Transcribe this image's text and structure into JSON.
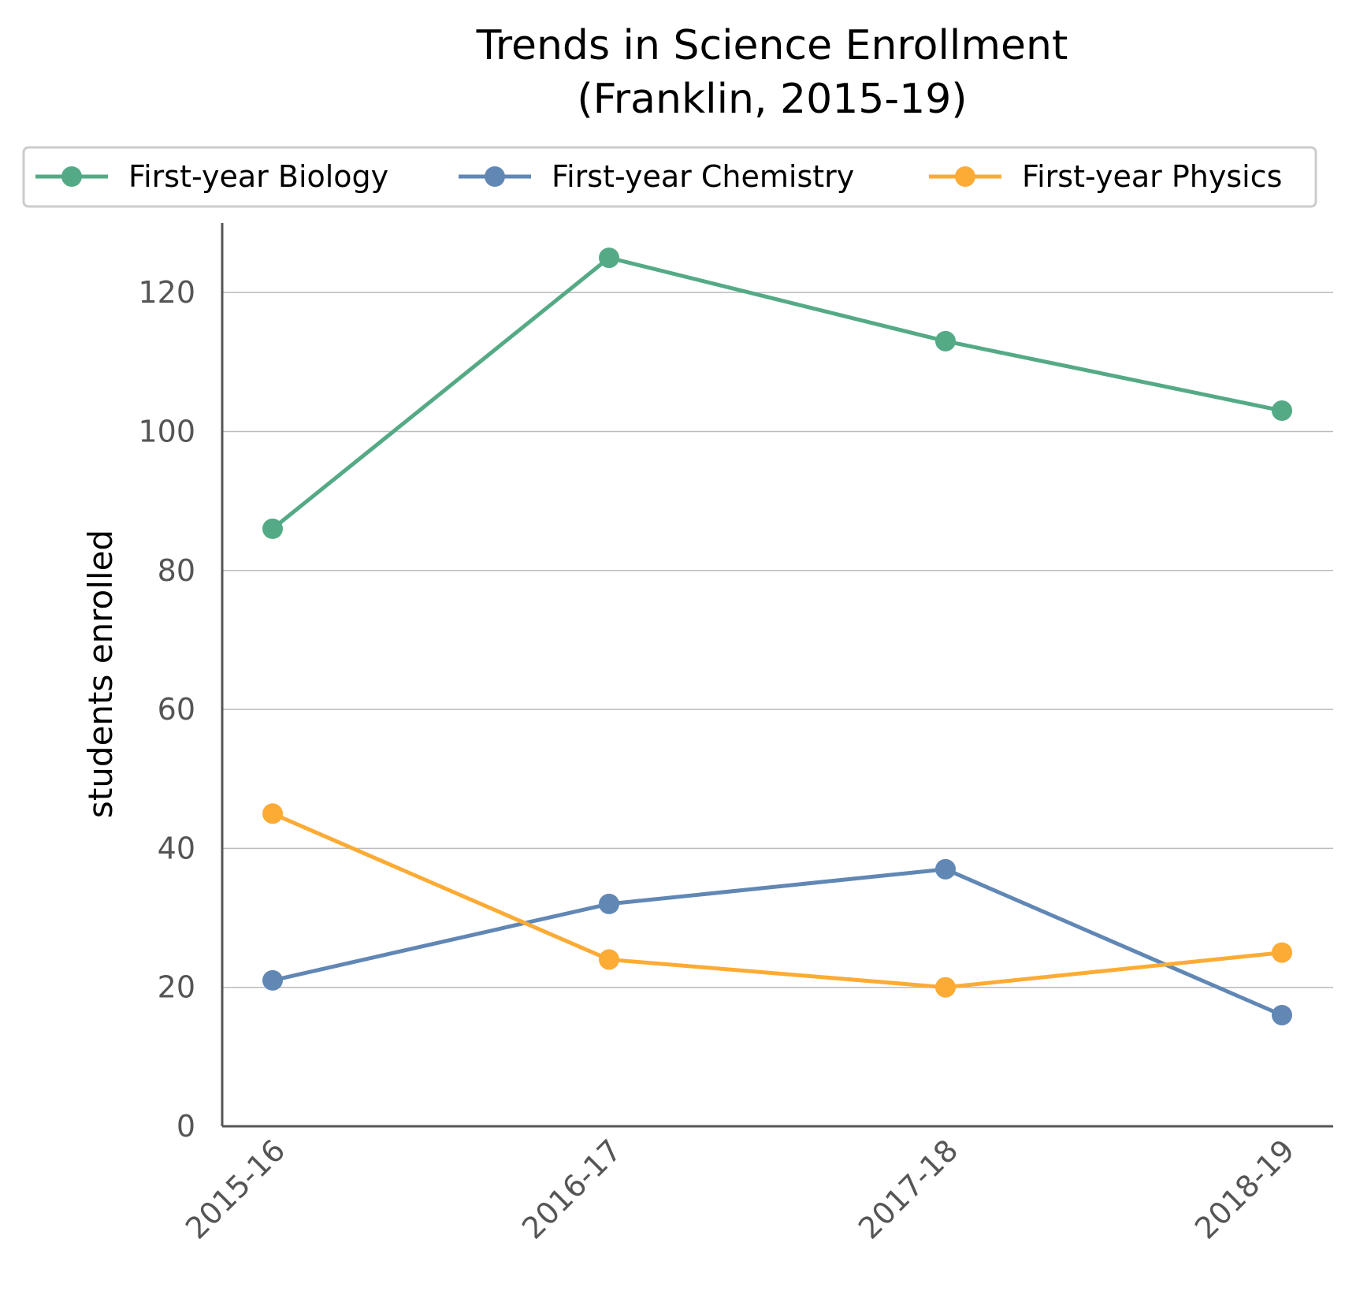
{
  "chart_data": {
    "type": "line",
    "title": "Trends in Science Enrollment\n(Franklin, 2015-19)",
    "title_lines": [
      "Trends in Science Enrollment",
      "(Franklin, 2015-19)"
    ],
    "xlabel": "",
    "ylabel": "students enrolled",
    "categories": [
      "2015-16",
      "2016-17",
      "2017-18",
      "2018-19"
    ],
    "ylim": [
      0,
      130
    ],
    "yticks": [
      0,
      20,
      40,
      60,
      80,
      100,
      120
    ],
    "grid": "horizontal",
    "legend_position": "top",
    "series": [
      {
        "name": "First-year Biology",
        "values": [
          86,
          125,
          113,
          103
        ],
        "color": "#55AA86"
      },
      {
        "name": "First-year Chemistry",
        "values": [
          21,
          32,
          37,
          16
        ],
        "color": "#6187B4"
      },
      {
        "name": "First-year Physics",
        "values": [
          45,
          24,
          20,
          25
        ],
        "color": "#FCAB35"
      }
    ]
  }
}
